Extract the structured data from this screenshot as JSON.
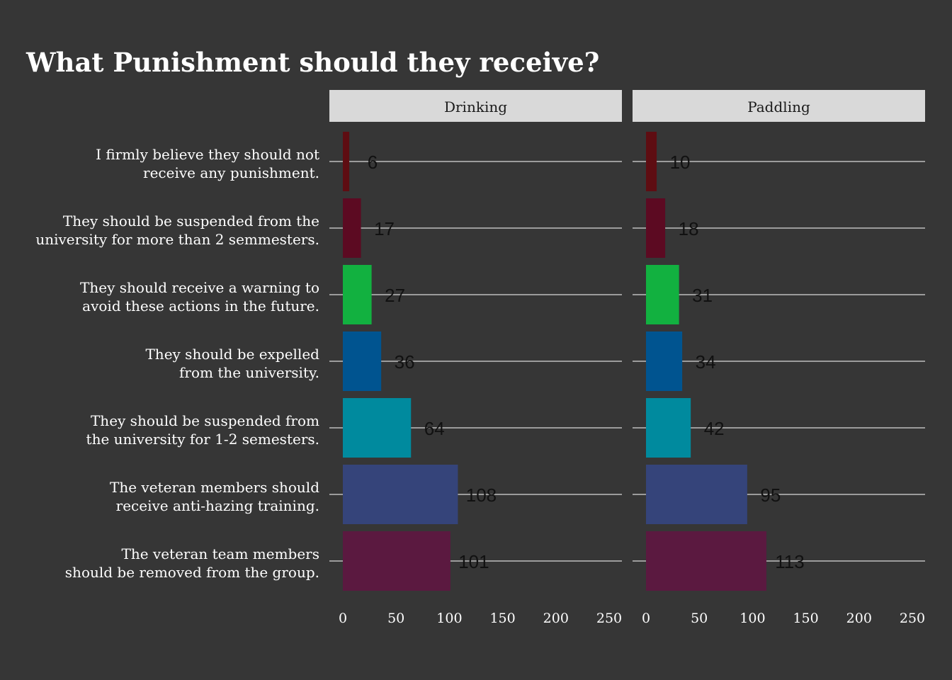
{
  "chart_data": {
    "type": "bar",
    "orientation": "horizontal",
    "title": "What Punishment should they receive?",
    "xlabel": "",
    "ylabel": "",
    "xlim": [
      0,
      250
    ],
    "xticks": [
      0,
      50,
      100,
      150,
      200,
      250
    ],
    "grid": "horizontal lines at each category",
    "legend": "none",
    "categories": [
      [
        "I firmly believe they should not",
        "receive any punishment."
      ],
      [
        "They should be suspended from the",
        "university for more than 2 semmesters."
      ],
      [
        "They should receive a warning to",
        "avoid these actions in the future."
      ],
      [
        "They should be expelled",
        "from the university."
      ],
      [
        "They should be suspended from",
        "the university for 1-2 semesters."
      ],
      [
        "The veteran members should",
        "receive anti-hazing training."
      ],
      [
        "The veteran team members",
        "should be removed from the group."
      ]
    ],
    "colors": [
      "#5e0d12",
      "#5c0a22",
      "#12b140",
      "#005490",
      "#008a9e",
      "#35447a",
      "#5b1940"
    ],
    "facets": [
      {
        "name": "Drinking",
        "values": [
          6,
          17,
          27,
          36,
          64,
          108,
          101
        ]
      },
      {
        "name": "Paddling",
        "values": [
          10,
          18,
          31,
          34,
          42,
          95,
          113
        ]
      }
    ]
  }
}
